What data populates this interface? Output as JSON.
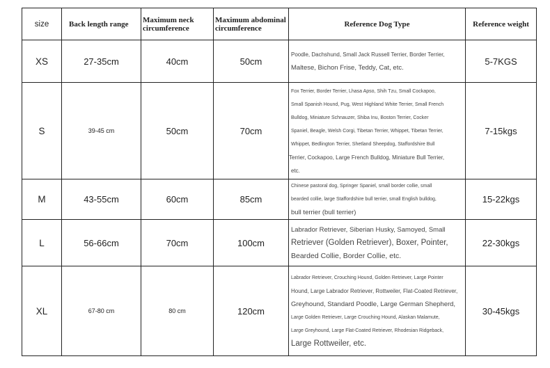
{
  "headers": [
    "size",
    "Back length range",
    "Maximum neck circumference",
    "Maximum abdominal circumference",
    "Reference Dog Type",
    "Reference weight"
  ],
  "rows": [
    {
      "size": "XS",
      "back": "27-35cm",
      "neck": "40cm",
      "abdomen": "50cm",
      "weight": "5-7KGS",
      "ref": [
        "Poodle, Dachshund, Small Jack Russell Terrier, Border Terrier,",
        "Maltese, Bichon Frise, Teddy, Cat, etc."
      ]
    },
    {
      "size": "S",
      "back": "39-45 cm",
      "neck": "50cm",
      "abdomen": "70cm",
      "weight": "7-15kgs",
      "ref": [
        "Fox Terrier, Border Terrier, Lhasa Apso, Shih Tzu, Small Cockapoo,",
        "Small Spanish Hound, Pug, West Highland White Terrier, Small French",
        "Bulldog, Miniature Schnauzer, Shiba Inu, Boston Terrier, Cocker",
        "Spaniel, Beagle, Welsh Corgi, Tibetan Terrier, Whippet, Tibetan Terrier,",
        "Whippet, Bedlington Terrier, Shetland Sheepdog, Staffordshire Bull",
        "Terrier, Cockapoo, Large French Bulldog, Miniature Bull Terrier,",
        "etc."
      ]
    },
    {
      "size": "M",
      "back": "43-55cm",
      "neck": "60cm",
      "abdomen": "85cm",
      "weight": "15-22kgs",
      "ref": [
        "Chinese pastoral dog, Springer Spaniel, small border collie, small",
        "bearded collie, large Staffordshire bull terrier, small English bulldog,",
        "bull terrier (bull terrier)"
      ]
    },
    {
      "size": "L",
      "back": "56-66cm",
      "neck": "70cm",
      "abdomen": "100cm",
      "weight": "22-30kgs",
      "ref": [
        "Labrador Retriever, Siberian Husky, Samoyed, Small",
        "Retriever (Golden Retriever), Boxer, Pointer,",
        "Bearded Collie, Border Collie, etc."
      ]
    },
    {
      "size": "XL",
      "back": "67-80 cm",
      "neck": "80 cm",
      "abdomen": "120cm",
      "weight": "30-45kgs",
      "ref": [
        "Labrador Retriever, Crouching Hound, Golden Retriever, Large Pointer",
        "Hound, Large Labrador Retriever, Rottweiler, Flat-Coated Retriever,",
        "Greyhound, Standard Poodle, Large German Shepherd,",
        "Large Golden Retriever, Large Crouching Hound, Alaskan Malamute,",
        "Large Greyhound, Large Flat-Coated Retriever, Rhodesian Ridgeback,",
        "Large Rottweiler, etc."
      ]
    }
  ]
}
